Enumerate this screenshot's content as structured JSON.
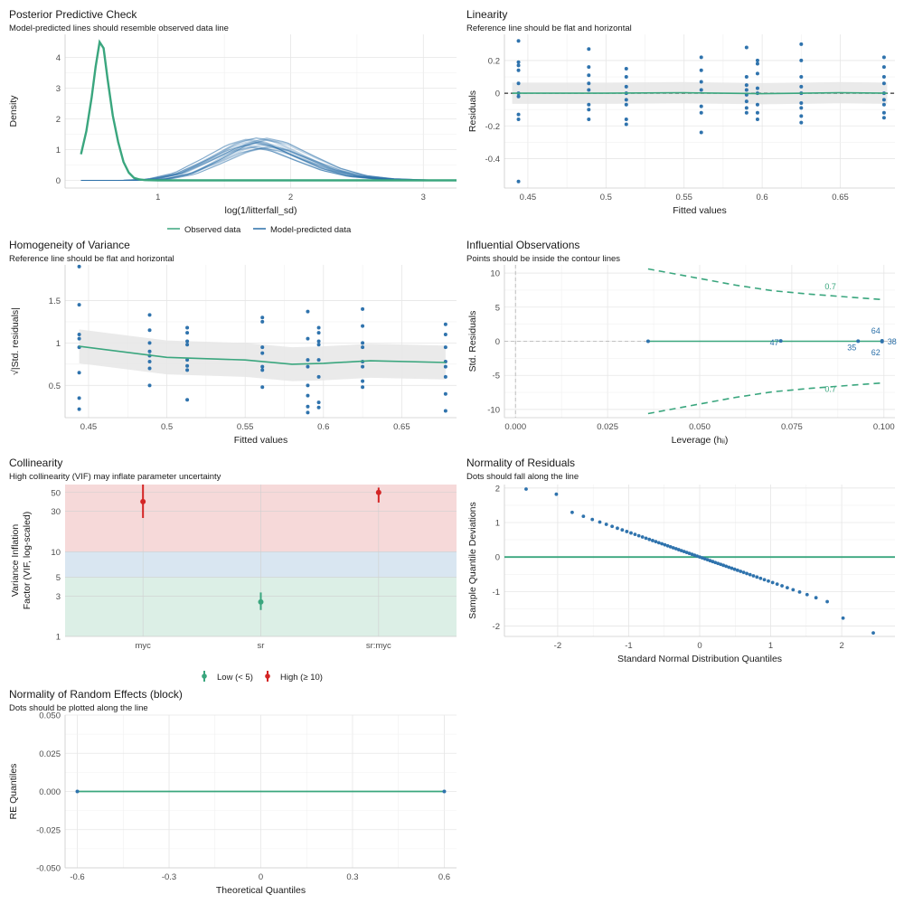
{
  "colors": {
    "observed": "#3aa67e",
    "predicted": "#2a6fa8",
    "point": "#2f73ad",
    "ref": "#3aa67e",
    "high": "#d42525",
    "low": "#3aa67e",
    "zone_high": "#f6d9d9",
    "zone_mod": "#d9e6f1",
    "zone_low": "#dcefe6",
    "ribbon": "#e6e6e6",
    "grid": "#e6e6e6"
  },
  "chart_data": [
    {
      "type": "line",
      "title": "Posterior Predictive Check",
      "subtitle": "Model-predicted lines should resemble observed data line",
      "xlabel": "log(1/litterfall_sd)",
      "ylabel": "Density",
      "xlim": [
        0.3,
        3.25
      ],
      "ylim": [
        -0.25,
        4.75
      ],
      "xticks": [
        1,
        2,
        3
      ],
      "yticks": [
        0,
        1,
        2,
        3,
        4
      ],
      "grid": true,
      "legend_position": "bottom",
      "series": [
        {
          "name": "Observed data",
          "x": [
            0.42,
            0.46,
            0.5,
            0.53,
            0.56,
            0.59,
            0.62,
            0.66,
            0.7,
            0.74,
            0.78,
            0.82,
            0.86,
            0.9,
            1.0,
            1.2,
            1.5,
            2.0,
            2.5,
            3.0,
            3.25
          ],
          "values": [
            0.85,
            1.6,
            2.7,
            3.7,
            4.5,
            4.3,
            3.3,
            2.1,
            1.25,
            0.6,
            0.25,
            0.08,
            0.03,
            0.01,
            0.0,
            0.0,
            0.0,
            0.0,
            0.0,
            0.0,
            0.0
          ]
        },
        {
          "name": "Model-predicted data",
          "x": [
            0.42,
            0.8,
            1.0,
            1.2,
            1.4,
            1.6,
            1.75,
            1.9,
            2.1,
            2.3,
            2.5,
            2.7,
            2.9,
            3.1,
            3.25
          ],
          "values": [
            0.0,
            0.0,
            0.04,
            0.22,
            0.62,
            1.05,
            1.22,
            1.1,
            0.72,
            0.36,
            0.14,
            0.05,
            0.02,
            0.0,
            0.0
          ],
          "draws": 30
        }
      ]
    },
    {
      "type": "scatter",
      "title": "Linearity",
      "subtitle": "Reference line should be flat and horizontal",
      "xlabel": "Fitted values",
      "ylabel": "Residuals",
      "xlim": [
        0.435,
        0.685
      ],
      "ylim": [
        -0.58,
        0.36
      ],
      "xticks": [
        0.45,
        0.5,
        0.55,
        0.6,
        0.65
      ],
      "yticks": [
        -0.4,
        -0.2,
        0.0,
        0.2
      ],
      "grid": true,
      "reference_line": 0,
      "points": [
        [
          0.444,
          0.32
        ],
        [
          0.444,
          0.19
        ],
        [
          0.444,
          0.17
        ],
        [
          0.444,
          0.14
        ],
        [
          0.444,
          0.06
        ],
        [
          0.444,
          0.0
        ],
        [
          0.444,
          -0.02
        ],
        [
          0.444,
          -0.13
        ],
        [
          0.444,
          -0.16
        ],
        [
          0.444,
          -0.54
        ],
        [
          0.489,
          0.27
        ],
        [
          0.489,
          0.16
        ],
        [
          0.489,
          0.11
        ],
        [
          0.489,
          0.06
        ],
        [
          0.489,
          0.02
        ],
        [
          0.489,
          -0.07
        ],
        [
          0.489,
          -0.1
        ],
        [
          0.489,
          -0.16
        ],
        [
          0.513,
          0.15
        ],
        [
          0.513,
          0.1
        ],
        [
          0.513,
          0.04
        ],
        [
          0.513,
          0.0
        ],
        [
          0.513,
          -0.04
        ],
        [
          0.513,
          -0.07
        ],
        [
          0.513,
          -0.16
        ],
        [
          0.513,
          -0.19
        ],
        [
          0.561,
          0.22
        ],
        [
          0.561,
          0.14
        ],
        [
          0.561,
          0.07
        ],
        [
          0.561,
          0.02
        ],
        [
          0.561,
          -0.08
        ],
        [
          0.561,
          -0.12
        ],
        [
          0.561,
          -0.24
        ],
        [
          0.59,
          0.28
        ],
        [
          0.59,
          0.1
        ],
        [
          0.59,
          0.05
        ],
        [
          0.59,
          0.02
        ],
        [
          0.59,
          -0.01
        ],
        [
          0.59,
          -0.05
        ],
        [
          0.59,
          -0.09
        ],
        [
          0.59,
          -0.12
        ],
        [
          0.597,
          0.2
        ],
        [
          0.597,
          0.18
        ],
        [
          0.597,
          0.12
        ],
        [
          0.597,
          0.03
        ],
        [
          0.597,
          0.0
        ],
        [
          0.597,
          -0.07
        ],
        [
          0.597,
          -0.12
        ],
        [
          0.597,
          -0.16
        ],
        [
          0.625,
          0.3
        ],
        [
          0.625,
          0.2
        ],
        [
          0.625,
          0.1
        ],
        [
          0.625,
          0.04
        ],
        [
          0.625,
          0.0
        ],
        [
          0.625,
          -0.06
        ],
        [
          0.625,
          -0.09
        ],
        [
          0.625,
          -0.14
        ],
        [
          0.625,
          -0.18
        ],
        [
          0.678,
          0.22
        ],
        [
          0.678,
          0.16
        ],
        [
          0.678,
          0.1
        ],
        [
          0.678,
          0.06
        ],
        [
          0.678,
          0.0
        ],
        [
          0.678,
          -0.04
        ],
        [
          0.678,
          -0.07
        ],
        [
          0.678,
          -0.12
        ],
        [
          0.678,
          -0.15
        ]
      ],
      "smooth": {
        "x": [
          0.44,
          0.5,
          0.55,
          0.6,
          0.65,
          0.68
        ],
        "values": [
          0.0,
          0.0,
          0.003,
          -0.003,
          0.003,
          0.0
        ],
        "band": 0.065
      }
    },
    {
      "type": "scatter",
      "title": "Homogeneity of Variance",
      "subtitle": "Reference line should be flat and horizontal",
      "xlabel": "Fitted values",
      "ylabel": "√|Std. residuals|",
      "xlim": [
        0.435,
        0.685
      ],
      "ylim": [
        0.12,
        1.92
      ],
      "xticks": [
        0.45,
        0.5,
        0.55,
        0.6,
        0.65
      ],
      "yticks": [
        0.5,
        1.0,
        1.5
      ],
      "grid": true,
      "points": [
        [
          0.444,
          1.9
        ],
        [
          0.444,
          1.45
        ],
        [
          0.444,
          1.1
        ],
        [
          0.444,
          1.05
        ],
        [
          0.444,
          0.95
        ],
        [
          0.444,
          0.65
        ],
        [
          0.444,
          0.35
        ],
        [
          0.444,
          0.22
        ],
        [
          0.489,
          1.33
        ],
        [
          0.489,
          1.15
        ],
        [
          0.489,
          1.0
        ],
        [
          0.489,
          0.9
        ],
        [
          0.489,
          0.85
        ],
        [
          0.489,
          0.78
        ],
        [
          0.489,
          0.7
        ],
        [
          0.489,
          0.5
        ],
        [
          0.513,
          1.18
        ],
        [
          0.513,
          1.12
        ],
        [
          0.513,
          1.02
        ],
        [
          0.513,
          0.98
        ],
        [
          0.513,
          0.8
        ],
        [
          0.513,
          0.73
        ],
        [
          0.513,
          0.68
        ],
        [
          0.513,
          0.33
        ],
        [
          0.561,
          1.3
        ],
        [
          0.561,
          1.25
        ],
        [
          0.561,
          0.95
        ],
        [
          0.561,
          0.88
        ],
        [
          0.561,
          0.72
        ],
        [
          0.561,
          0.68
        ],
        [
          0.561,
          0.48
        ],
        [
          0.59,
          1.37
        ],
        [
          0.59,
          1.05
        ],
        [
          0.59,
          0.8
        ],
        [
          0.59,
          0.72
        ],
        [
          0.59,
          0.5
        ],
        [
          0.59,
          0.38
        ],
        [
          0.59,
          0.25
        ],
        [
          0.59,
          0.18
        ],
        [
          0.597,
          1.18
        ],
        [
          0.597,
          1.12
        ],
        [
          0.597,
          1.02
        ],
        [
          0.597,
          0.98
        ],
        [
          0.597,
          0.8
        ],
        [
          0.597,
          0.6
        ],
        [
          0.597,
          0.3
        ],
        [
          0.597,
          0.24
        ],
        [
          0.625,
          1.4
        ],
        [
          0.625,
          1.2
        ],
        [
          0.625,
          1.0
        ],
        [
          0.625,
          0.95
        ],
        [
          0.625,
          0.78
        ],
        [
          0.625,
          0.72
        ],
        [
          0.625,
          0.55
        ],
        [
          0.625,
          0.48
        ],
        [
          0.678,
          1.22
        ],
        [
          0.678,
          1.1
        ],
        [
          0.678,
          0.95
        ],
        [
          0.678,
          0.78
        ],
        [
          0.678,
          0.72
        ],
        [
          0.678,
          0.6
        ],
        [
          0.678,
          0.4
        ],
        [
          0.678,
          0.2
        ]
      ],
      "smooth": {
        "x": [
          0.444,
          0.5,
          0.55,
          0.58,
          0.6,
          0.63,
          0.678
        ],
        "values": [
          0.96,
          0.83,
          0.8,
          0.75,
          0.76,
          0.79,
          0.77
        ],
        "band": 0.2
      }
    },
    {
      "type": "scatter",
      "title": "Influential Observations",
      "subtitle": "Points should be inside the contour lines",
      "xlabel": "Leverage (hᵢᵢ)",
      "ylabel": "Std. Residuals",
      "xlim": [
        -0.003,
        0.103
      ],
      "ylim": [
        -11.2,
        11.2
      ],
      "xticks": [
        0.0,
        0.025,
        0.05,
        0.075,
        0.1
      ],
      "xtick_labels": [
        "0.000",
        "0.025",
        "0.050",
        "0.075",
        "0.100"
      ],
      "yticks": [
        -10,
        -5,
        0,
        5,
        10
      ],
      "grid": true,
      "contour_level": "0.7",
      "contour_x": [
        0.036,
        0.04,
        0.05,
        0.06,
        0.07,
        0.08,
        0.09,
        0.1
      ],
      "contour_upper": [
        10.6,
        10.2,
        9.2,
        8.2,
        7.4,
        6.9,
        6.5,
        6.1
      ],
      "contour_lower": [
        -10.6,
        -10.2,
        -9.2,
        -8.2,
        -7.4,
        -6.9,
        -6.5,
        -6.1
      ],
      "points": [
        [
          0.036,
          0.0
        ],
        [
          0.072,
          0.05
        ],
        [
          0.093,
          0.02
        ],
        [
          0.0995,
          0.06
        ],
        [
          0.0995,
          -0.05
        ]
      ],
      "labels": [
        "47",
        "35",
        "64",
        "62",
        "38"
      ]
    },
    {
      "type": "scatter",
      "title": "Collinearity",
      "subtitle": "High collinearity (VIF) may inflate parameter uncertainty",
      "xlabel": "",
      "ylabel": "Variance Inflation Factor (VIF, log-scaled)",
      "ylabel_lines": [
        "Variance Inflation",
        "Factor (VIF, log-scaled)"
      ],
      "categories": [
        "myc",
        "sr",
        "sr:myc"
      ],
      "ylog": true,
      "ylim": [
        1,
        62
      ],
      "yticks": [
        1,
        3,
        5,
        10,
        30,
        50
      ],
      "grid": true,
      "legend_position": "bottom",
      "zones": [
        [
          1,
          5
        ],
        [
          5,
          10
        ],
        [
          10,
          62
        ]
      ],
      "series": [
        {
          "name": "Low (< 5)",
          "category": "sr",
          "value": 2.55,
          "lo": 2.05,
          "hi": 3.3
        },
        {
          "name": "High (≥ 10)",
          "category": "myc",
          "value": 39.0,
          "lo": 25.0,
          "hi": 62.0
        },
        {
          "name": "High (≥ 10)",
          "category": "sr:myc",
          "value": 50.0,
          "lo": 38.0,
          "hi": 57.0
        }
      ]
    },
    {
      "type": "scatter",
      "title": "Normality of Residuals",
      "subtitle": "Dots should fall along the line",
      "xlabel": "Standard Normal Distribution Quantiles",
      "ylabel": "Sample Quantile Deviations",
      "xlim": [
        -2.75,
        2.75
      ],
      "ylim": [
        -2.3,
        2.1
      ],
      "xticks": [
        -2,
        -1,
        0,
        1,
        2
      ],
      "yticks": [
        -2,
        -1,
        0,
        1,
        2
      ],
      "grid": true,
      "reference_line": 0,
      "n_points": 69,
      "slope": -0.72,
      "ends": [
        [
          -2.5,
          1.97
        ],
        [
          2.5,
          -2.2
        ]
      ]
    },
    {
      "type": "scatter",
      "title": "Normality of Random Effects (block)",
      "subtitle": "Dots should be plotted along the line",
      "xlabel": "Theoretical Quantiles",
      "ylabel": "RE Quantiles",
      "xlim": [
        -0.64,
        0.64
      ],
      "ylim": [
        -0.05,
        0.05
      ],
      "xticks": [
        -0.6,
        -0.3,
        0.0,
        0.3,
        0.6
      ],
      "yticks": [
        -0.05,
        -0.025,
        0.0,
        0.025,
        0.05
      ],
      "ytick_labels": [
        "-0.050",
        "-0.025",
        "0.000",
        "0.025",
        "0.050"
      ],
      "grid": true,
      "points": [
        [
          -0.6,
          0.0
        ],
        [
          0.6,
          0.0
        ]
      ],
      "line_values": [
        0.0,
        0.0
      ]
    }
  ]
}
